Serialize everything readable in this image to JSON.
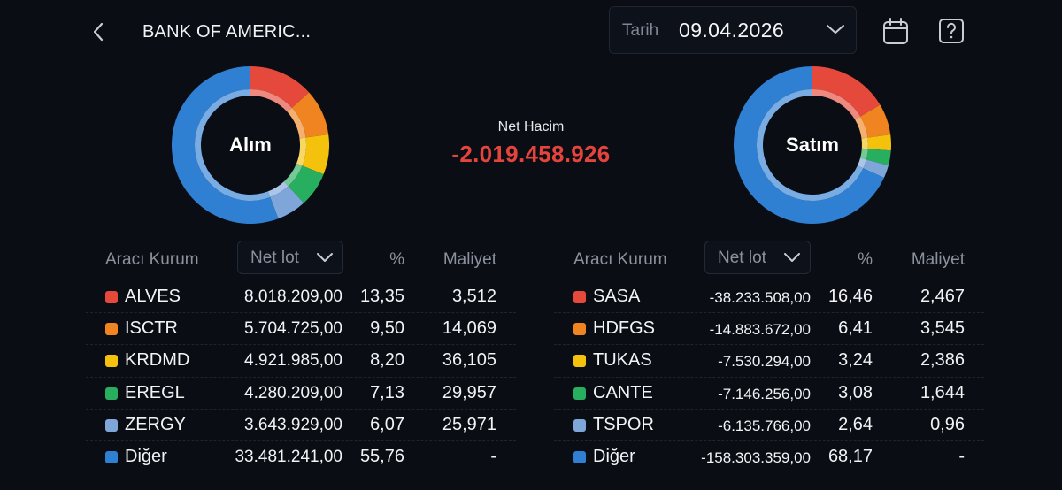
{
  "header": {
    "title": "BANK OF AMERIC...",
    "date_label": "Tarih",
    "date_value": "09.04.2026"
  },
  "icons": {
    "back": "chevron-left-icon",
    "date_dropdown": "chevron-down-icon",
    "calendar": "calendar-icon",
    "help": "question-icon"
  },
  "summary": {
    "net_label": "Net Hacim",
    "net_value": "-2.019.458.926",
    "net_color": "#e5443c"
  },
  "colors": {
    "red": "#e5493c",
    "orange": "#ef8421",
    "yellow": "#f4c20d",
    "green": "#27ae5f",
    "lightblue": "#7ea6d8",
    "blue": "#2f7fd3"
  },
  "buy": {
    "donut_label": "Alım",
    "columns": {
      "broker": "Aracı Kurum",
      "netlot": "Net lot",
      "pct": "%",
      "cost": "Maliyet"
    },
    "rows": [
      {
        "name": "ALVES",
        "lot": "8.018.209,00",
        "pct": "13,35",
        "cost": "3,512",
        "color": "#e5493c"
      },
      {
        "name": "ISCTR",
        "lot": "5.704.725,00",
        "pct": "9,50",
        "cost": "14,069",
        "color": "#ef8421"
      },
      {
        "name": "KRDMD",
        "lot": "4.921.985,00",
        "pct": "8,20",
        "cost": "36,105",
        "color": "#f4c20d"
      },
      {
        "name": "EREGL",
        "lot": "4.280.209,00",
        "pct": "7,13",
        "cost": "29,957",
        "color": "#27ae5f"
      },
      {
        "name": "ZERGY",
        "lot": "3.643.929,00",
        "pct": "6,07",
        "cost": "25,971",
        "color": "#7ea6d8"
      },
      {
        "name": "Diğer",
        "lot": "33.481.241,00",
        "pct": "55,76",
        "cost": "-",
        "color": "#2f7fd3"
      }
    ]
  },
  "sell": {
    "donut_label": "Satım",
    "columns": {
      "broker": "Aracı Kurum",
      "netlot": "Net lot",
      "pct": "%",
      "cost": "Maliyet"
    },
    "rows": [
      {
        "name": "SASA",
        "lot": "-38.233.508,00",
        "pct": "16,46",
        "cost": "2,467",
        "color": "#e5493c"
      },
      {
        "name": "HDFGS",
        "lot": "-14.883.672,00",
        "pct": "6,41",
        "cost": "3,545",
        "color": "#ef8421"
      },
      {
        "name": "TUKAS",
        "lot": "-7.530.294,00",
        "pct": "3,24",
        "cost": "2,386",
        "color": "#f4c20d"
      },
      {
        "name": "CANTE",
        "lot": "-7.146.256,00",
        "pct": "3,08",
        "cost": "1,644",
        "color": "#27ae5f"
      },
      {
        "name": "TSPOR",
        "lot": "-6.135.766,00",
        "pct": "2,64",
        "cost": "0,96",
        "color": "#7ea6d8"
      },
      {
        "name": "Diğer",
        "lot": "-158.303.359,00",
        "pct": "68,17",
        "cost": "-",
        "color": "#2f7fd3"
      }
    ]
  },
  "chart_data": [
    {
      "type": "pie",
      "title": "Alım",
      "categories": [
        "ALVES",
        "ISCTR",
        "KRDMD",
        "EREGL",
        "ZERGY",
        "Diğer"
      ],
      "values": [
        13.35,
        9.5,
        8.2,
        7.13,
        6.07,
        55.76
      ],
      "colors": [
        "#e5493c",
        "#ef8421",
        "#f4c20d",
        "#27ae5f",
        "#7ea6d8",
        "#2f7fd3"
      ]
    },
    {
      "type": "pie",
      "title": "Satım",
      "categories": [
        "SASA",
        "HDFGS",
        "TUKAS",
        "CANTE",
        "TSPOR",
        "Diğer"
      ],
      "values": [
        16.46,
        6.41,
        3.24,
        3.08,
        2.64,
        68.17
      ],
      "colors": [
        "#e5493c",
        "#ef8421",
        "#f4c20d",
        "#27ae5f",
        "#7ea6d8",
        "#2f7fd3"
      ]
    }
  ]
}
